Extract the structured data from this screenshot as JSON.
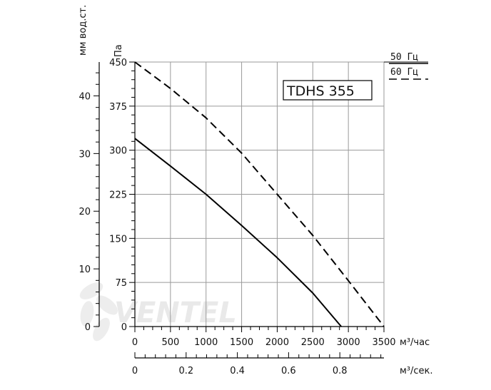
{
  "chart_data": {
    "type": "line",
    "model_label": "TDHS 355",
    "watermark": "VENTEL",
    "x_axis": {
      "label": "м³/час",
      "range": [
        0,
        3500
      ],
      "ticks": [
        0,
        500,
        1000,
        1500,
        2000,
        2500,
        3000,
        3500
      ]
    },
    "x2_axis": {
      "label": "м³/сек.",
      "range": [
        0,
        0.9722
      ],
      "ticks": [
        0,
        0.2,
        0.4,
        0.6,
        0.8
      ]
    },
    "y_axis": {
      "label": "Па",
      "range": [
        0,
        450
      ],
      "ticks": [
        0,
        75,
        150,
        225,
        300,
        375,
        450
      ]
    },
    "y2_axis": {
      "label": "мм вод.ст.",
      "range": [
        0,
        45.87
      ],
      "ticks": [
        0,
        10,
        20,
        30,
        40
      ]
    },
    "grid": true,
    "legend_position": "top-right",
    "series": [
      {
        "name": "50 Гц",
        "style": "solid",
        "color": "#000000",
        "x": [
          0,
          500,
          1000,
          1500,
          2000,
          2500,
          2900
        ],
        "y": [
          320,
          273,
          225,
          172,
          117,
          57,
          0
        ]
      },
      {
        "name": "60 Гц",
        "style": "dashed",
        "color": "#000000",
        "x": [
          0,
          500,
          1000,
          1500,
          2000,
          2500,
          3000,
          3500
        ],
        "y": [
          450,
          405,
          355,
          295,
          225,
          155,
          78,
          0
        ]
      }
    ]
  }
}
